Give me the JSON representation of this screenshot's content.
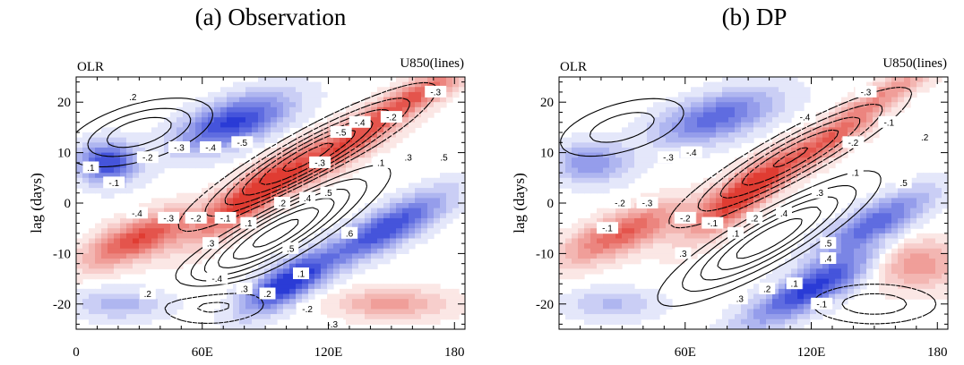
{
  "colors": {
    "positive": "#e03c32",
    "negative": "#2a3bd6",
    "contour": "#000000",
    "background": "#ffffff"
  },
  "chart_data": [
    {
      "type": "heatmap",
      "title": "(a)  Observation",
      "left_label": "OLR",
      "right_label": "U850(lines)",
      "ylabel": "lag (days)",
      "xlim": [
        0,
        185
      ],
      "ylim": [
        -25,
        25
      ],
      "x_ticks": [
        0,
        60,
        120,
        180
      ],
      "x_tick_labels": [
        "0",
        "60E",
        "120E",
        "180"
      ],
      "y_ticks": [
        -20,
        -10,
        0,
        10,
        20
      ],
      "y_tick_labels": [
        "-20",
        "-10",
        "0",
        "10",
        "20"
      ],
      "shading_features": [
        {
          "sign": "pos",
          "lon": 85,
          "lag": 2,
          "width": 26,
          "height": 4.5,
          "slope": 0.28,
          "amp": 1.0
        },
        {
          "sign": "pos",
          "lon": 130,
          "lag": 12,
          "width": 28,
          "height": 4,
          "slope": 0.25,
          "amp": 0.8
        },
        {
          "sign": "pos",
          "lon": 30,
          "lag": -7,
          "width": 25,
          "height": 4,
          "slope": 0.15,
          "amp": 0.85
        },
        {
          "sign": "pos",
          "lon": 165,
          "lag": 22,
          "width": 22,
          "height": 3,
          "slope": 0.2,
          "amp": 0.6
        },
        {
          "sign": "pos",
          "lon": 150,
          "lag": -20,
          "width": 26,
          "height": 3,
          "slope": 0,
          "amp": 0.45
        },
        {
          "sign": "neg",
          "lon": 75,
          "lag": 16,
          "width": 26,
          "height": 4.5,
          "slope": 0.12,
          "amp": 0.9
        },
        {
          "sign": "neg",
          "lon": 15,
          "lag": 8,
          "width": 14,
          "height": 4,
          "slope": 0,
          "amp": 0.85
        },
        {
          "sign": "neg",
          "lon": 100,
          "lag": -16,
          "width": 20,
          "height": 4,
          "slope": 0.2,
          "amp": 1.0
        },
        {
          "sign": "neg",
          "lon": 148,
          "lag": -5,
          "width": 28,
          "height": 4,
          "slope": 0.2,
          "amp": 0.85
        },
        {
          "sign": "neg",
          "lon": 20,
          "lag": -20,
          "width": 22,
          "height": 3,
          "slope": 0,
          "amp": 0.35
        }
      ],
      "contour_features": [
        {
          "lon": 95,
          "lag": -6,
          "width": 40,
          "height": 5,
          "slope": 0.22,
          "amp": 1.0
        },
        {
          "lon": 110,
          "lag": 9,
          "width": 45,
          "height": 4.5,
          "slope": 0.22,
          "amp": -1.0
        },
        {
          "lon": 30,
          "lag": 14,
          "width": 30,
          "height": 5,
          "slope": 0.1,
          "amp": 0.6
        },
        {
          "lon": 60,
          "lag": -20,
          "width": 30,
          "height": 4,
          "slope": 0,
          "amp": -0.4
        }
      ],
      "contour_labels": [
        {
          "text": ".2",
          "lon": 27,
          "lag": 21
        },
        {
          "text": ".1",
          "lon": 7,
          "lag": 7
        },
        {
          "text": "-.1",
          "lon": 18,
          "lag": 4
        },
        {
          "text": "-.2",
          "lon": 34,
          "lag": 9
        },
        {
          "text": "-.3",
          "lon": 49,
          "lag": 11
        },
        {
          "text": "-.4",
          "lon": 64,
          "lag": 11
        },
        {
          "text": "-.5",
          "lon": 79,
          "lag": 12
        },
        {
          "text": "-.5",
          "lon": 126,
          "lag": 14
        },
        {
          "text": "-.4",
          "lon": 135,
          "lag": 16
        },
        {
          "text": "-.2",
          "lon": 150,
          "lag": 17
        },
        {
          "text": "-.3",
          "lon": 171,
          "lag": 22
        },
        {
          "text": "-.3",
          "lon": 116,
          "lag": 8
        },
        {
          "text": ".1",
          "lon": 145,
          "lag": 8
        },
        {
          "text": ".3",
          "lon": 158,
          "lag": 9
        },
        {
          "text": ".5",
          "lon": 175,
          "lag": 9
        },
        {
          "text": "-.4",
          "lon": 29,
          "lag": -2
        },
        {
          "text": "-.3",
          "lon": 44,
          "lag": -3
        },
        {
          "text": "-.2",
          "lon": 57,
          "lag": -3
        },
        {
          "text": "-.1",
          "lon": 71,
          "lag": -3
        },
        {
          "text": ".1",
          "lon": 82,
          "lag": -4
        },
        {
          "text": ".2",
          "lon": 98,
          "lag": 0
        },
        {
          "text": ".4",
          "lon": 110,
          "lag": 1
        },
        {
          "text": ".5",
          "lon": 120,
          "lag": 2
        },
        {
          "text": ".3",
          "lon": 64,
          "lag": -8
        },
        {
          "text": ".5",
          "lon": 102,
          "lag": -9
        },
        {
          "text": ".6",
          "lon": 130,
          "lag": -6
        },
        {
          "text": "-.4",
          "lon": 67,
          "lag": -15
        },
        {
          "text": ".3",
          "lon": 80,
          "lag": -17
        },
        {
          "text": ".2",
          "lon": 91,
          "lag": -18
        },
        {
          "text": ".1",
          "lon": 107,
          "lag": -14
        },
        {
          "text": "-.2",
          "lon": 110,
          "lag": -21
        },
        {
          "text": ".2",
          "lon": 34,
          "lag": -18
        },
        {
          "text": "-.3",
          "lon": 122,
          "lag": -24
        }
      ]
    },
    {
      "type": "heatmap",
      "title": "(b)  DP",
      "left_label": "OLR",
      "right_label": "U850(lines)",
      "ylabel": "lag (days)",
      "xlim": [
        0,
        185
      ],
      "ylim": [
        -25,
        25
      ],
      "x_ticks": [
        60,
        120,
        180
      ],
      "x_tick_labels": [
        "60E",
        "120E",
        "180"
      ],
      "y_ticks": [
        -20,
        -10,
        0,
        10,
        20
      ],
      "y_tick_labels": [
        "-20",
        "-10",
        "0",
        "10",
        "20"
      ],
      "shading_features": [
        {
          "sign": "pos",
          "lon": 88,
          "lag": 2,
          "width": 24,
          "height": 4.5,
          "slope": 0.28,
          "amp": 1.0
        },
        {
          "sign": "pos",
          "lon": 130,
          "lag": 13,
          "width": 24,
          "height": 3.5,
          "slope": 0.25,
          "amp": 0.7
        },
        {
          "sign": "pos",
          "lon": 30,
          "lag": -6,
          "width": 28,
          "height": 4,
          "slope": 0.15,
          "amp": 0.75
        },
        {
          "sign": "pos",
          "lon": 160,
          "lag": 23,
          "width": 22,
          "height": 2.5,
          "slope": 0.2,
          "amp": 0.4
        },
        {
          "sign": "pos",
          "lon": 170,
          "lag": -12,
          "width": 20,
          "height": 5,
          "slope": 0,
          "amp": 0.5
        },
        {
          "sign": "neg",
          "lon": 75,
          "lag": 17,
          "width": 28,
          "height": 4.5,
          "slope": 0.1,
          "amp": 0.7
        },
        {
          "sign": "neg",
          "lon": 15,
          "lag": 8,
          "width": 18,
          "height": 4,
          "slope": 0,
          "amp": 0.5
        },
        {
          "sign": "neg",
          "lon": 120,
          "lag": -17,
          "width": 30,
          "height": 4,
          "slope": 0.2,
          "amp": 0.9
        },
        {
          "sign": "neg",
          "lon": 150,
          "lag": -4,
          "width": 26,
          "height": 4,
          "slope": 0.2,
          "amp": 0.7
        },
        {
          "sign": "neg",
          "lon": 25,
          "lag": -20,
          "width": 22,
          "height": 3,
          "slope": 0,
          "amp": 0.3
        }
      ],
      "contour_features": [
        {
          "lon": 100,
          "lag": -7,
          "width": 40,
          "height": 5,
          "slope": 0.22,
          "amp": 0.9
        },
        {
          "lon": 110,
          "lag": 9,
          "width": 45,
          "height": 4.5,
          "slope": 0.22,
          "amp": -0.8
        },
        {
          "lon": 30,
          "lag": 15,
          "width": 30,
          "height": 5,
          "slope": 0.1,
          "amp": 0.4
        },
        {
          "lon": 150,
          "lag": -20,
          "width": 30,
          "height": 4,
          "slope": 0,
          "amp": -0.4
        }
      ],
      "contour_labels": [
        {
          "text": "-.3",
          "lon": 52,
          "lag": 9
        },
        {
          "text": "-.4",
          "lon": 63,
          "lag": 10
        },
        {
          "text": "-.3",
          "lon": 146,
          "lag": 22
        },
        {
          "text": "-.4",
          "lon": 117,
          "lag": 17
        },
        {
          "text": "-.2",
          "lon": 140,
          "lag": 12
        },
        {
          "text": "-.1",
          "lon": 157,
          "lag": 16
        },
        {
          "text": ".2",
          "lon": 174,
          "lag": 13
        },
        {
          "text": ".1",
          "lon": 141,
          "lag": 6
        },
        {
          "text": ".3",
          "lon": 124,
          "lag": 2
        },
        {
          "text": ".5",
          "lon": 164,
          "lag": 4
        },
        {
          "text": "-.2",
          "lon": 29,
          "lag": 0
        },
        {
          "text": "-.3",
          "lon": 42,
          "lag": 0
        },
        {
          "text": "-.1",
          "lon": 23,
          "lag": -5
        },
        {
          "text": "-.2",
          "lon": 60,
          "lag": -3
        },
        {
          "text": "-.1",
          "lon": 73,
          "lag": -4
        },
        {
          "text": ".1",
          "lon": 84,
          "lag": -6
        },
        {
          "text": ".2",
          "lon": 93,
          "lag": -3
        },
        {
          "text": ".4",
          "lon": 107,
          "lag": -2
        },
        {
          "text": ".5",
          "lon": 128,
          "lag": -8
        },
        {
          "text": ".4",
          "lon": 128,
          "lag": -11
        },
        {
          "text": ".3",
          "lon": 59,
          "lag": -10
        },
        {
          "text": ".3",
          "lon": 86,
          "lag": -19
        },
        {
          "text": ".2",
          "lon": 99,
          "lag": -17
        },
        {
          "text": ".1",
          "lon": 112,
          "lag": -16
        },
        {
          "text": "-.1",
          "lon": 125,
          "lag": -20
        }
      ]
    }
  ]
}
